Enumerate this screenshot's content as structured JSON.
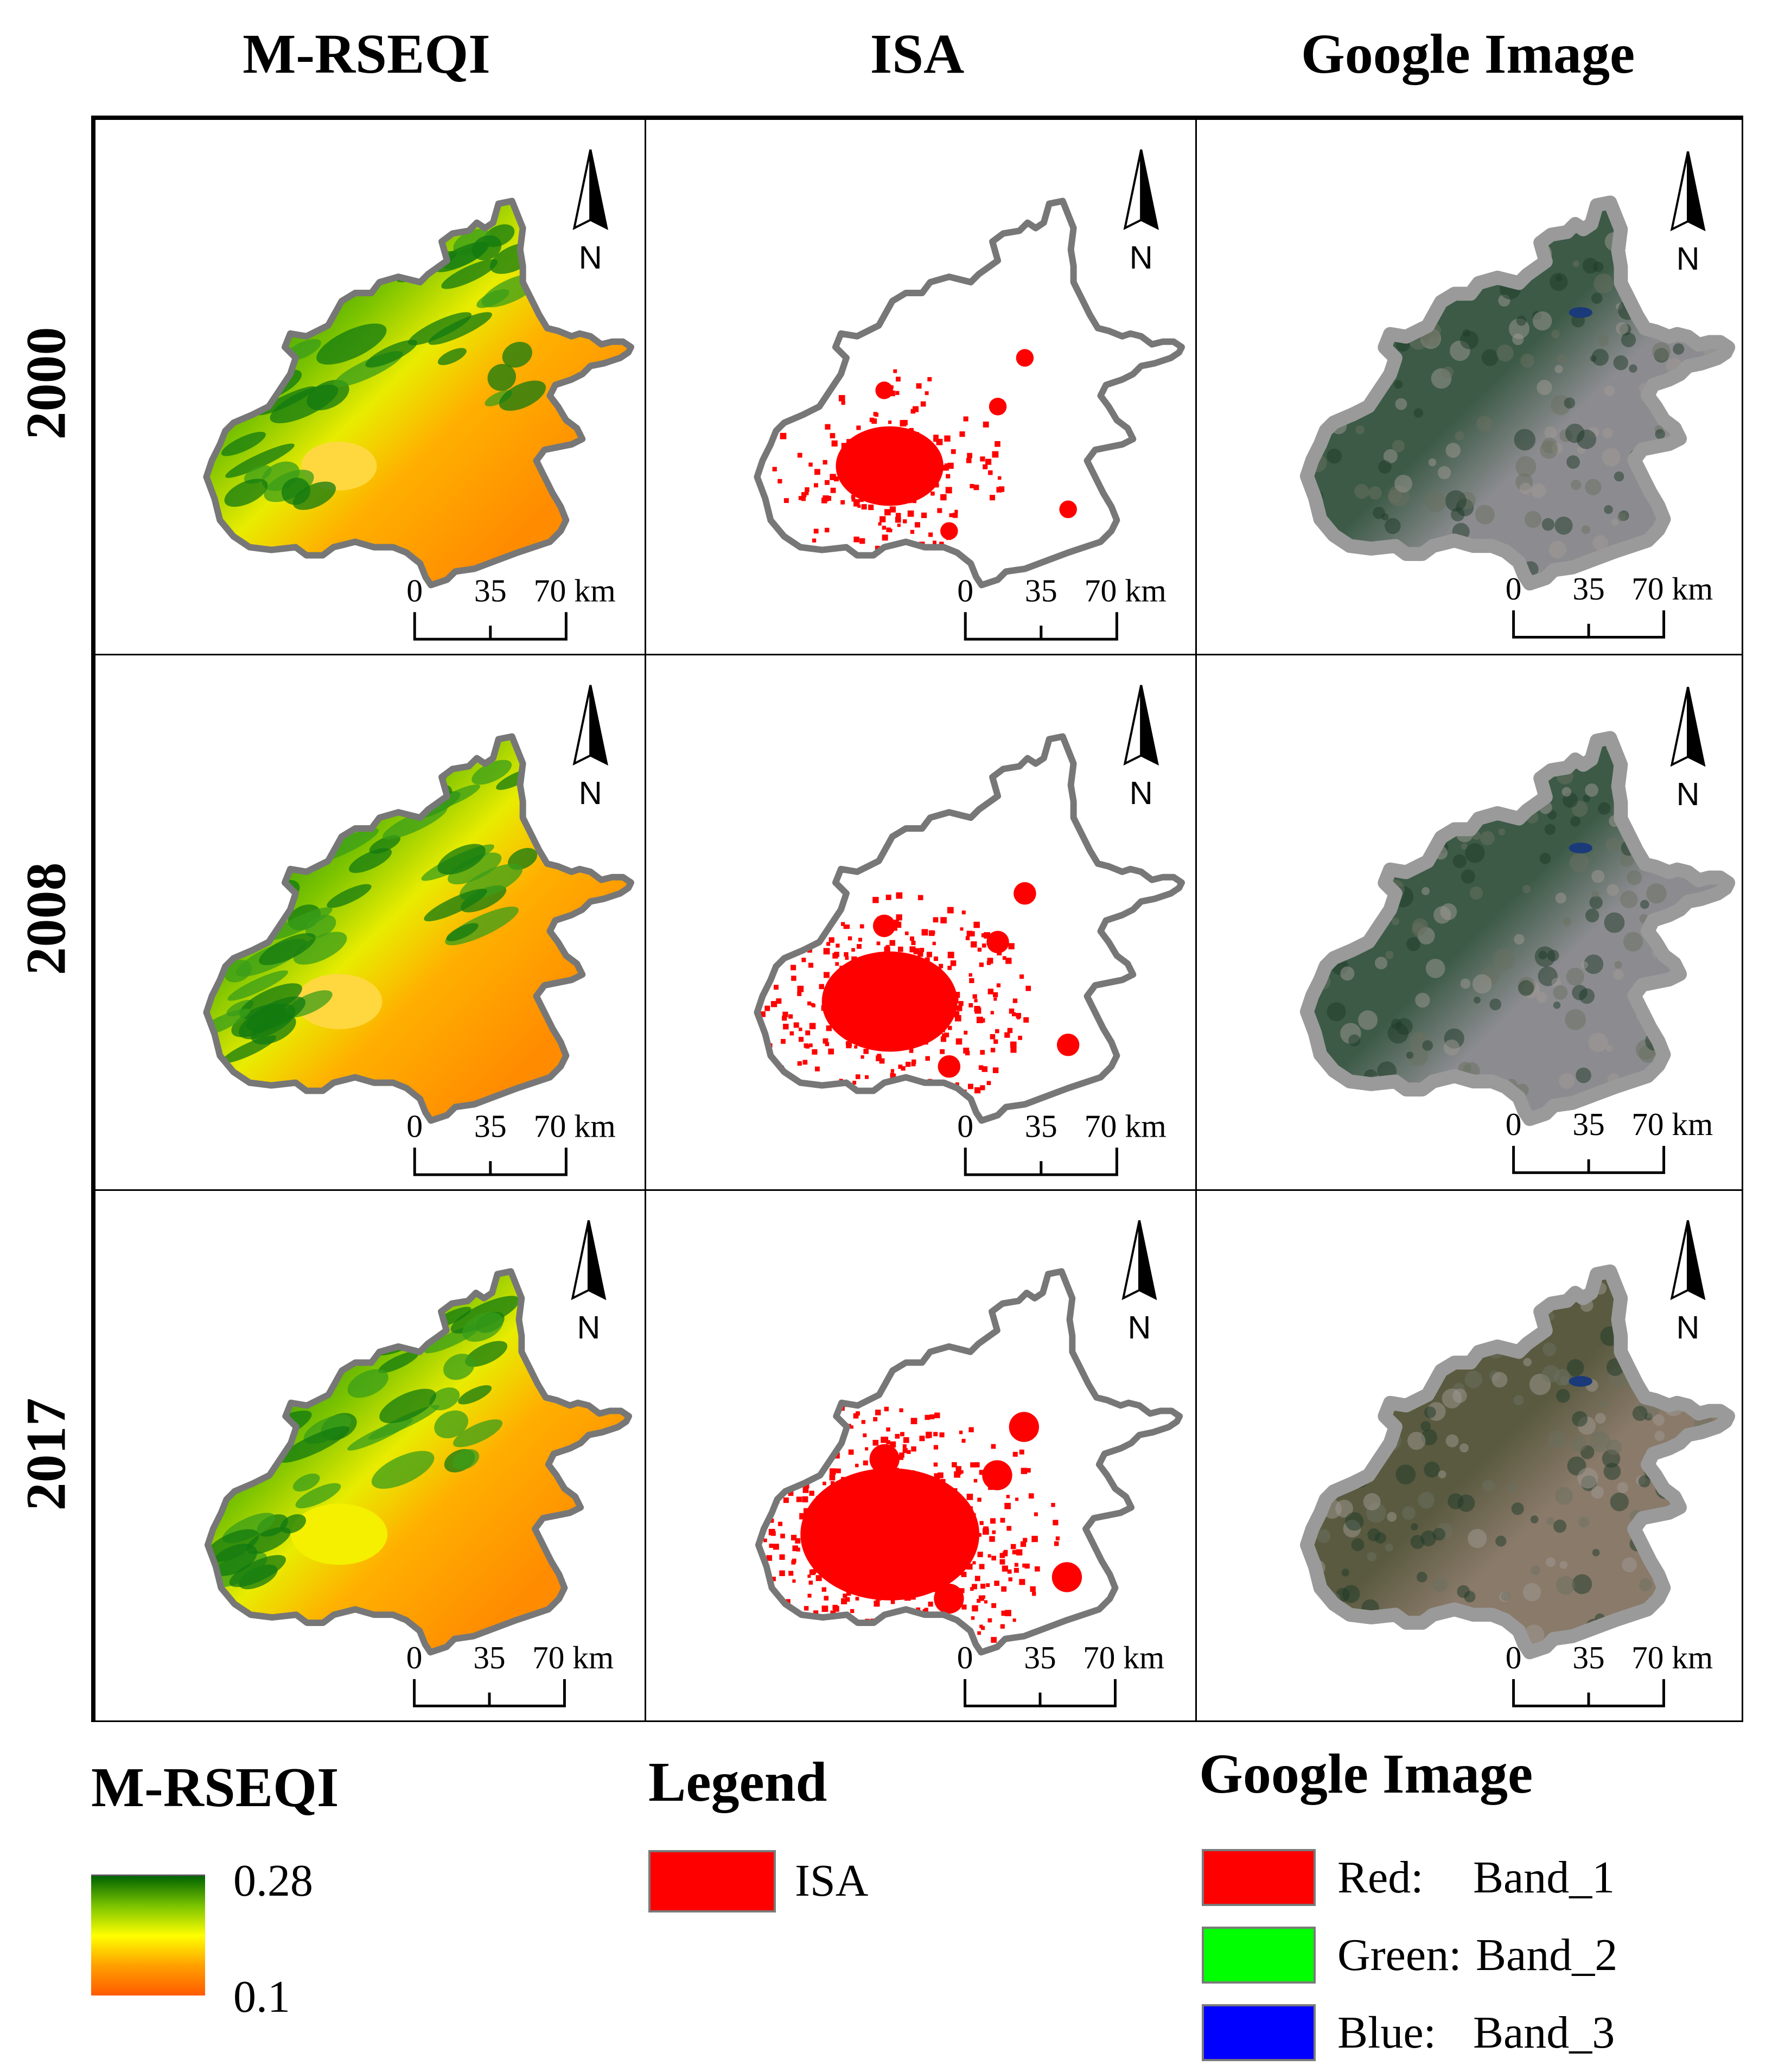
{
  "columns": [
    "M-RSEQI",
    "ISA",
    "Google Image"
  ],
  "rows": [
    "2000",
    "2008",
    "2017"
  ],
  "north_label": "N",
  "scale_bar": {
    "ticks": [
      "0",
      "35",
      "70"
    ],
    "unit": "km"
  },
  "legends": {
    "mrseqi": {
      "title": "M-RSEQI",
      "max_label": "0.28",
      "min_label": "0.1",
      "colors": [
        "#006400",
        "#7cc400",
        "#ffff00",
        "#ffa000",
        "#ff5a00"
      ]
    },
    "isa": {
      "title": "Legend",
      "item": {
        "label": "ISA",
        "color": "#ff0000"
      }
    },
    "google": {
      "title": "Google Image",
      "bands": [
        {
          "channel": "Red:",
          "band": "Band_1",
          "color": "#ff0000"
        },
        {
          "channel": "Green:",
          "band": "Band_2",
          "color": "#00ff00"
        },
        {
          "channel": "Blue:",
          "band": "Band_3",
          "color": "#0000ff"
        }
      ]
    }
  },
  "isa_growth": [
    0.35,
    0.6,
    1.0
  ]
}
